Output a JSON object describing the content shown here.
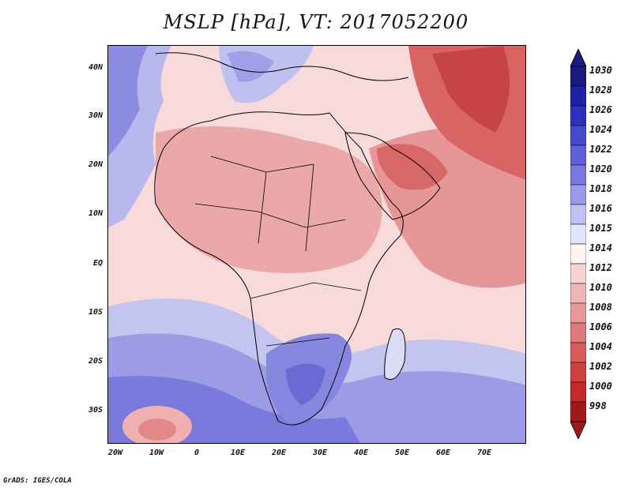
{
  "title": "MSLP [hPa], VT: 2017052200",
  "credit": "GrADS: IGES/COLA",
  "y_axis_labels": [
    "40N",
    "30N",
    "20N",
    "10N",
    "EQ",
    "10S",
    "20S",
    "30S"
  ],
  "x_axis_labels": [
    "20W",
    "10W",
    "0",
    "10E",
    "20E",
    "30E",
    "40E",
    "50E",
    "60E",
    "70E"
  ],
  "colorbar": {
    "labels": [
      "1030",
      "1028",
      "1026",
      "1024",
      "1022",
      "1020",
      "1018",
      "1016",
      "1015",
      "1014",
      "1012",
      "1010",
      "1008",
      "1006",
      "1004",
      "1002",
      "1000",
      "998"
    ],
    "colors": [
      "#1a1a7e",
      "#2020a8",
      "#3030c0",
      "#4848cc",
      "#6060d8",
      "#7878e0",
      "#9a9ae8",
      "#c0c0f2",
      "#e4e4fa",
      "#fff4f4",
      "#f6d2d2",
      "#f0b6b6",
      "#e89898",
      "#e07a7a",
      "#d85c5c",
      "#d04040",
      "#c42828",
      "#a01818"
    ]
  },
  "colors": {
    "low_pressure": "#c84040",
    "high_pressure": "#5050c8",
    "land_outline": "#000000"
  }
}
